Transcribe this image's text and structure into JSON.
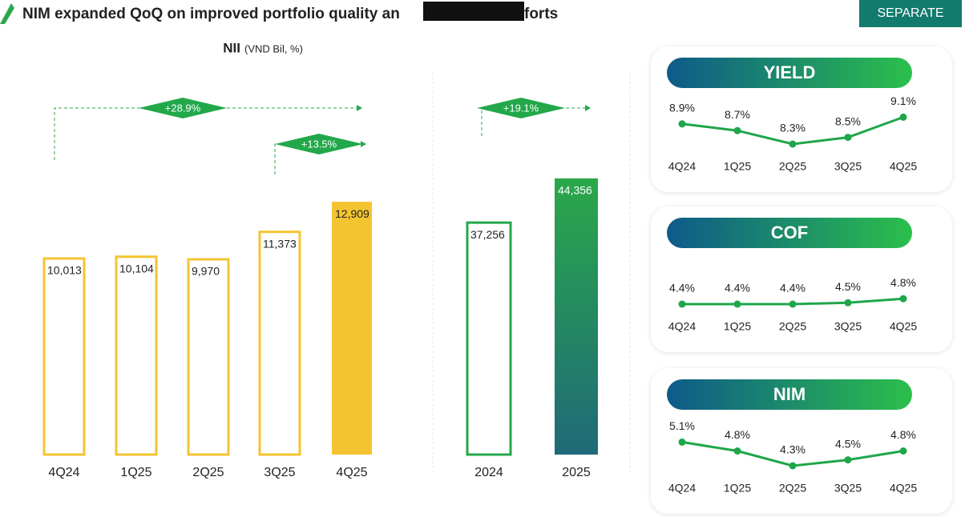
{
  "header": {
    "title": "NIM expanded QoQ on improved portfolio quality an",
    "title_end": "forts",
    "button": "SEPARATE"
  },
  "chart_data": [
    {
      "type": "bar",
      "title": "NII",
      "subtitle": "(VND Bil, %)",
      "categories": [
        "4Q24",
        "1Q25",
        "2Q25",
        "3Q25",
        "4Q25"
      ],
      "values": [
        10013,
        10104,
        9970,
        11373,
        12909
      ],
      "value_labels": [
        "10,013",
        "10,104",
        "9,970",
        "11,373",
        "12,909"
      ],
      "color": "#f4c430",
      "filled": [
        false,
        false,
        false,
        false,
        true
      ],
      "annotations": [
        "+28.9%",
        "+13.5%"
      ]
    },
    {
      "type": "bar",
      "categories": [
        "2024",
        "2025"
      ],
      "values": [
        37256,
        44356
      ],
      "value_labels": [
        "37,256",
        "44,356"
      ],
      "color": "#22a84a",
      "filled": [
        false,
        true
      ],
      "annotations": [
        "+19.1%"
      ]
    },
    {
      "type": "line",
      "title": "YIELD",
      "categories": [
        "4Q24",
        "1Q25",
        "2Q25",
        "3Q25",
        "4Q25"
      ],
      "values": [
        8.9,
        8.7,
        8.3,
        8.5,
        9.1
      ],
      "value_labels": [
        "8.9%",
        "8.7%",
        "8.3%",
        "8.5%",
        "9.1%"
      ],
      "color": "#1fa64a"
    },
    {
      "type": "line",
      "title": "COF",
      "categories": [
        "4Q24",
        "1Q25",
        "2Q25",
        "3Q25",
        "4Q25"
      ],
      "values": [
        4.4,
        4.4,
        4.4,
        4.5,
        4.8
      ],
      "value_labels": [
        "4.4%",
        "4.4%",
        "4.4%",
        "4.5%",
        "4.8%"
      ],
      "color": "#1fa64a"
    },
    {
      "type": "line",
      "title": "NIM",
      "categories": [
        "4Q24",
        "1Q25",
        "2Q25",
        "3Q25",
        "4Q25"
      ],
      "values": [
        5.1,
        4.8,
        4.3,
        4.5,
        4.8
      ],
      "value_labels": [
        "5.1%",
        "4.8%",
        "4.3%",
        "4.5%",
        "4.8%"
      ],
      "color": "#1fa64a"
    }
  ]
}
